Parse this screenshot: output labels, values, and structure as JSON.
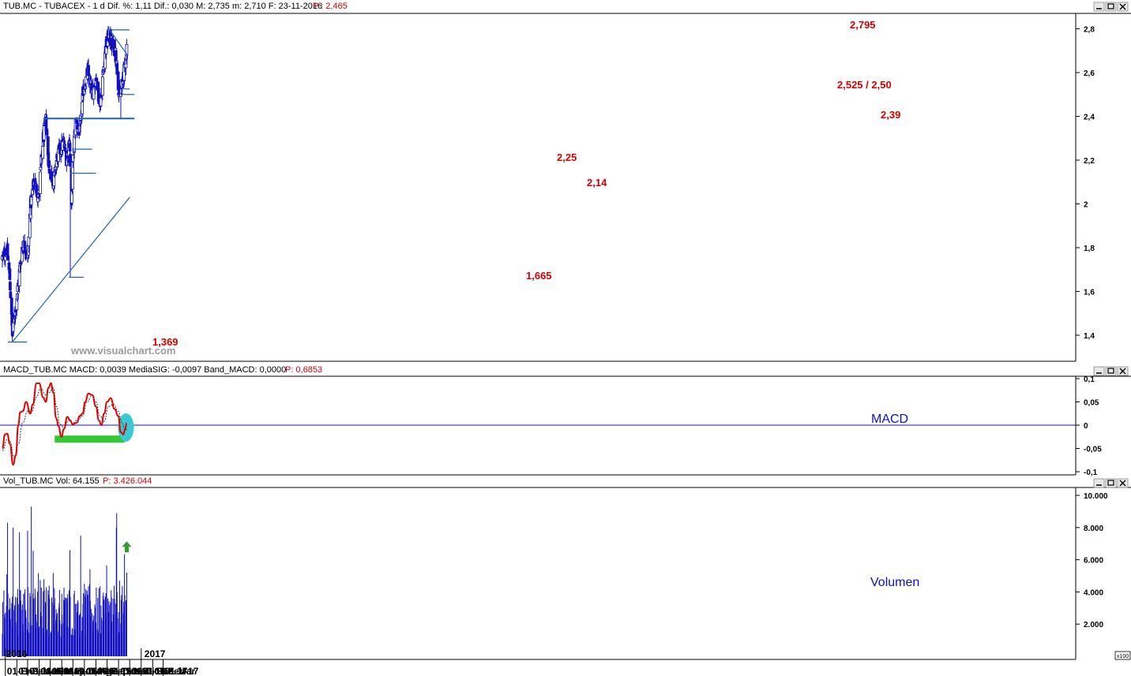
{
  "header": {
    "price": "TUB.MC - TUBACEX - 1 d Dif. %: 1,11  Dif.: 0,030  M: 2,735  m: 2,710  F: 23-11-2016",
    "price_p": "P : 2,465",
    "macd": "MACD_TUB.MC MACD: 0,0039 MediaSIG: -0,0097 Band_MACD: 0,0000",
    "macd_p": "P: 0,6853",
    "vol": "Vol_TUB.MC Vol: 64.155",
    "vol_p": "P: 3.426.044"
  },
  "watermark": "www.visualchart.com",
  "panel_labels": {
    "macd": "MACD",
    "volume": "Volumen"
  },
  "units_badge": "x100",
  "colors": {
    "axis": "#1a1aa0",
    "candle": "#1010c0",
    "trendline": "#1e64b4",
    "level_text": "#d40000",
    "macd_line": "#e00000",
    "signal_line": "#333333",
    "green_band": "#32c832",
    "ellipse": "#3cc8d2",
    "arrow": "#2ea02e",
    "window_buttons": "#e8e8e8"
  },
  "chart_data": [
    {
      "type": "candlestick",
      "title": "TUB.MC - TUBACEX - 1 d",
      "ylim": [
        1.3,
        2.85
      ],
      "y_ticks": [
        "2,8",
        "2,6",
        "2,4",
        "2,2",
        "2",
        "1,8",
        "1,6",
        "1,4"
      ],
      "x_ticks": [
        "01-Ene-16",
        "01-Feb-16",
        "01-Mar-16",
        "01-Abr-16",
        "01-May-16",
        "01-Jun-16",
        "01-Jul-16",
        "01-Ago-16",
        "01-Sep-16",
        "01-Oct-16",
        "01-Nov-16",
        "01-Dic-16",
        "01-Ene-17",
        "01-Feb-17",
        "01-Mar"
      ],
      "year_labels": [
        "2016",
        "2017"
      ],
      "anchors": [
        {
          "date": "2015-12-24",
          "close": 1.75
        },
        {
          "date": "2016-01-05",
          "close": 1.79
        },
        {
          "date": "2016-01-13",
          "close": 1.66
        },
        {
          "date": "2016-01-20",
          "close": 1.4
        },
        {
          "date": "2016-02-01",
          "close": 1.58
        },
        {
          "date": "2016-02-15",
          "close": 1.8
        },
        {
          "date": "2016-02-22",
          "close": 1.82
        },
        {
          "date": "2016-03-01",
          "close": 1.74
        },
        {
          "date": "2016-03-08",
          "close": 1.98
        },
        {
          "date": "2016-03-18",
          "close": 2.1
        },
        {
          "date": "2016-03-31",
          "close": 2.04
        },
        {
          "date": "2016-04-12",
          "close": 2.3
        },
        {
          "date": "2016-04-19",
          "close": 2.38
        },
        {
          "date": "2016-04-28",
          "close": 2.16
        },
        {
          "date": "2016-05-10",
          "close": 2.1
        },
        {
          "date": "2016-05-20",
          "close": 2.22
        },
        {
          "date": "2016-06-06",
          "close": 2.28
        },
        {
          "date": "2016-06-14",
          "close": 2.2
        },
        {
          "date": "2016-06-22",
          "close": 2.3
        },
        {
          "date": "2016-06-27",
          "close": 1.97
        },
        {
          "date": "2016-06-30",
          "close": 2.17
        },
        {
          "date": "2016-07-08",
          "close": 2.37
        },
        {
          "date": "2016-07-20",
          "close": 2.33
        },
        {
          "date": "2016-07-29",
          "close": 2.52
        },
        {
          "date": "2016-08-10",
          "close": 2.6
        },
        {
          "date": "2016-08-22",
          "close": 2.5
        },
        {
          "date": "2016-09-02",
          "close": 2.58
        },
        {
          "date": "2016-09-12",
          "close": 2.45
        },
        {
          "date": "2016-09-26",
          "close": 2.7
        },
        {
          "date": "2016-10-05",
          "close": 2.77
        },
        {
          "date": "2016-10-17",
          "close": 2.72
        },
        {
          "date": "2016-10-24",
          "close": 2.7
        },
        {
          "date": "2016-10-31",
          "close": 2.55
        },
        {
          "date": "2016-11-04",
          "close": 2.48
        },
        {
          "date": "2016-11-14",
          "close": 2.58
        },
        {
          "date": "2016-11-18",
          "close": 2.63
        },
        {
          "date": "2016-11-23",
          "close": 2.72
        }
      ],
      "spikes": [
        {
          "date": "2016-01-20",
          "low": 1.369
        },
        {
          "date": "2016-06-24",
          "low": 1.665
        },
        {
          "date": "2016-11-07",
          "low": 2.39
        },
        {
          "date": "2016-10-07",
          "high": 2.795
        }
      ],
      "levels": [
        {
          "label": "2,795",
          "value": 2.795,
          "from": "2016-10-01",
          "to": "2016-12-01"
        },
        {
          "label": "2,525 / 2,50",
          "value": 2.525,
          "from": "2016-11-14",
          "to": "2016-12-01"
        },
        {
          "label": "",
          "value": 2.5,
          "from": "2016-11-10",
          "to": "2016-12-14"
        },
        {
          "label": "2,39",
          "value": 2.39,
          "from": "2016-04-12",
          "to": "2016-12-14"
        },
        {
          "label": "2,25",
          "value": 2.25,
          "from": "2016-07-01",
          "to": "2016-08-22"
        },
        {
          "label": "2,14",
          "value": 2.14,
          "from": "2016-06-24",
          "to": "2016-09-01"
        },
        {
          "label": "1,665",
          "value": 1.665,
          "from": "2016-06-20",
          "to": "2016-07-30"
        },
        {
          "label": "1,369",
          "value": 1.369,
          "from": "2016-01-08",
          "to": "2016-02-28"
        }
      ],
      "trendlines": [
        {
          "from": {
            "date": "2016-01-20",
            "value": 1.369
          },
          "to": {
            "date": "2016-12-01",
            "value": 2.03
          }
        },
        {
          "from": {
            "date": "2016-10-08",
            "value": 2.795
          },
          "to": {
            "date": "2016-11-25",
            "value": 2.68
          }
        }
      ]
    },
    {
      "type": "line",
      "title": "MACD",
      "ylim": [
        -0.1,
        0.1
      ],
      "y_ticks": [
        "0,1",
        "0,05",
        "0",
        "-0,05",
        "-0,1"
      ],
      "series": [
        {
          "name": "MACD",
          "points": [
            [
              "2015-12-24",
              -0.05
            ],
            [
              "2015-12-31",
              -0.02
            ],
            [
              "2016-01-06",
              -0.018
            ],
            [
              "2016-01-13",
              -0.04
            ],
            [
              "2016-01-22",
              -0.085
            ],
            [
              "2016-01-29",
              -0.065
            ],
            [
              "2016-02-05",
              0.0
            ],
            [
              "2016-02-10",
              0.028
            ],
            [
              "2016-02-17",
              0.03
            ],
            [
              "2016-02-26",
              0.05
            ],
            [
              "2016-03-08",
              0.025
            ],
            [
              "2016-03-15",
              0.045
            ],
            [
              "2016-03-25",
              0.09
            ],
            [
              "2016-04-01",
              0.09
            ],
            [
              "2016-04-12",
              0.06
            ],
            [
              "2016-04-19",
              0.05
            ],
            [
              "2016-04-26",
              0.08
            ],
            [
              "2016-05-03",
              0.09
            ],
            [
              "2016-05-09",
              0.07
            ],
            [
              "2016-05-17",
              0.015
            ],
            [
              "2016-05-23",
              -0.002
            ],
            [
              "2016-05-31",
              -0.025
            ],
            [
              "2016-06-07",
              -0.008
            ],
            [
              "2016-06-16",
              0.018
            ],
            [
              "2016-06-24",
              0.01
            ],
            [
              "2016-06-30",
              0.002
            ],
            [
              "2016-07-11",
              0.005
            ],
            [
              "2016-07-20",
              0.02
            ],
            [
              "2016-07-27",
              0.025
            ],
            [
              "2016-08-03",
              0.05
            ],
            [
              "2016-08-12",
              0.068
            ],
            [
              "2016-08-22",
              0.065
            ],
            [
              "2016-09-01",
              0.04
            ],
            [
              "2016-09-09",
              0.01
            ],
            [
              "2016-09-16",
              0.0
            ],
            [
              "2016-09-23",
              0.025
            ],
            [
              "2016-10-01",
              0.05
            ],
            [
              "2016-10-11",
              0.058
            ],
            [
              "2016-10-21",
              0.035
            ],
            [
              "2016-10-31",
              0.02
            ],
            [
              "2016-11-07",
              -0.015
            ],
            [
              "2016-11-14",
              -0.02
            ],
            [
              "2016-11-18",
              -0.01
            ],
            [
              "2016-11-23",
              0.004
            ]
          ]
        },
        {
          "name": "MediaSIG",
          "points": [
            [
              "2015-12-24",
              -0.055
            ],
            [
              "2016-01-06",
              -0.03
            ],
            [
              "2016-01-13",
              -0.035
            ],
            [
              "2016-01-25",
              -0.07
            ],
            [
              "2016-02-05",
              -0.04
            ],
            [
              "2016-02-17",
              0.005
            ],
            [
              "2016-03-01",
              0.03
            ],
            [
              "2016-03-12",
              0.03
            ],
            [
              "2016-03-25",
              0.06
            ],
            [
              "2016-04-05",
              0.08
            ],
            [
              "2016-04-19",
              0.065
            ],
            [
              "2016-04-28",
              0.07
            ],
            [
              "2016-05-09",
              0.08
            ],
            [
              "2016-05-18",
              0.04
            ],
            [
              "2016-05-27",
              0.002
            ],
            [
              "2016-06-07",
              -0.005
            ],
            [
              "2016-06-20",
              0.01
            ],
            [
              "2016-07-01",
              0.005
            ],
            [
              "2016-07-15",
              0.012
            ],
            [
              "2016-07-27",
              0.02
            ],
            [
              "2016-08-08",
              0.05
            ],
            [
              "2016-08-22",
              0.065
            ],
            [
              "2016-09-01",
              0.05
            ],
            [
              "2016-09-12",
              0.02
            ],
            [
              "2016-09-23",
              0.008
            ],
            [
              "2016-10-05",
              0.04
            ],
            [
              "2016-10-18",
              0.045
            ],
            [
              "2016-10-31",
              0.03
            ],
            [
              "2016-11-10",
              0.005
            ],
            [
              "2016-11-18",
              -0.01
            ],
            [
              "2016-11-23",
              -0.0097
            ]
          ]
        }
      ],
      "highlight_band": {
        "from": "2016-05-13",
        "to": "2016-11-17",
        "value": -0.03
      },
      "highlight_ellipse": {
        "date": "2016-11-23",
        "value": -0.005
      }
    },
    {
      "type": "bar",
      "title": "Volumen",
      "ylim": [
        0,
        11000
      ],
      "y_ticks": [
        "10.000",
        "8.000",
        "6.000",
        "4.000",
        "2.000"
      ],
      "notable_bars": [
        {
          "date": "2016-01-07",
          "value": 8300
        },
        {
          "date": "2016-01-22",
          "value": 8000
        },
        {
          "date": "2016-02-08",
          "value": 7700
        },
        {
          "date": "2016-03-01",
          "value": 7800
        },
        {
          "date": "2016-03-11",
          "value": 9300
        },
        {
          "date": "2016-06-23",
          "value": 6600
        },
        {
          "date": "2016-07-22",
          "value": 7500
        },
        {
          "date": "2016-10-26",
          "value": 8000
        },
        {
          "date": "2016-10-27",
          "value": 8900
        },
        {
          "date": "2016-11-04",
          "value": 4700
        },
        {
          "date": "2016-11-23",
          "value": 5200
        }
      ],
      "annotation": {
        "date": "2016-11-23",
        "value": 6800
      }
    }
  ]
}
